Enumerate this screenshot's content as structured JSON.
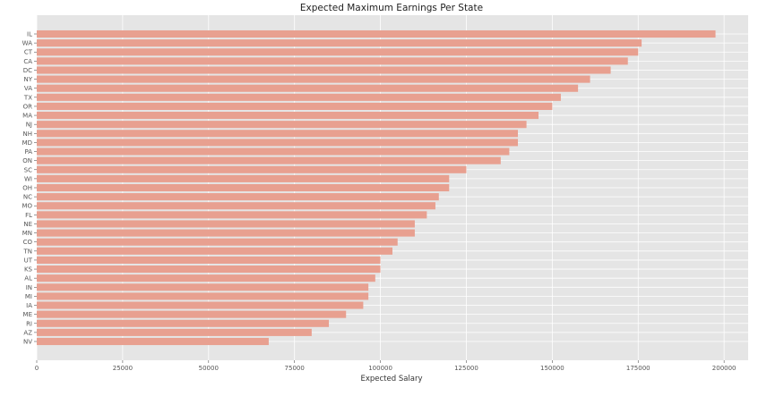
{
  "chart_data": {
    "type": "bar",
    "orientation": "horizontal",
    "title": "Expected Maximum Earnings Per State",
    "xlabel": "Expected Salary",
    "ylabel": "",
    "xlim": [
      0,
      207000
    ],
    "xticks": [
      0,
      25000,
      50000,
      75000,
      100000,
      125000,
      150000,
      175000,
      200000
    ],
    "grid": true,
    "categories": [
      "IL",
      "WA",
      "CT",
      "CA",
      "DC",
      "NY",
      "VA",
      "TX",
      "OR",
      "MA",
      "NJ",
      "NH",
      "MD",
      "PA",
      "ON",
      "SC",
      "WI",
      "OH",
      "NC",
      "MO",
      "FL",
      "NE",
      "MN",
      "CO",
      "TN",
      "UT",
      "KS",
      "AL",
      "IN",
      "MI",
      "IA",
      "ME",
      "RI",
      "AZ",
      "NV"
    ],
    "values": [
      197500,
      176000,
      175000,
      172000,
      167000,
      161000,
      157500,
      152500,
      150000,
      146000,
      142500,
      140000,
      140000,
      137500,
      135000,
      125000,
      120000,
      120000,
      117000,
      116000,
      113500,
      110000,
      110000,
      105000,
      103500,
      100000,
      100000,
      98500,
      96500,
      96500,
      95000,
      90000,
      85000,
      80000,
      67500
    ],
    "colors": {
      "bar": "#E8A090",
      "background": "#E5E5E5",
      "grid": "#FFFFFF"
    }
  }
}
